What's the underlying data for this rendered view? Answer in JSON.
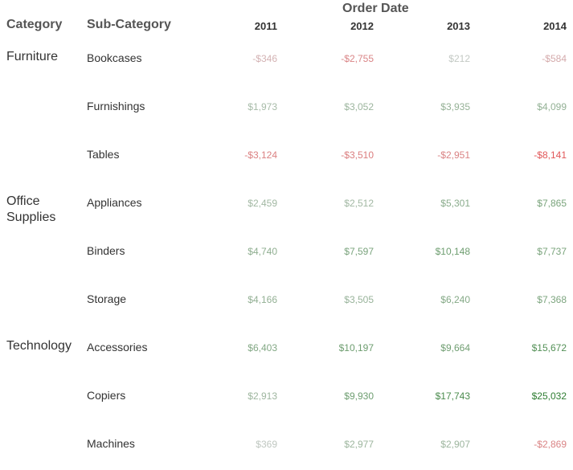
{
  "headers": {
    "category": "Category",
    "sub_category": "Sub-Category",
    "column_group": "Order Date"
  },
  "chart_data": {
    "type": "table",
    "title": "",
    "columns": [
      "2011",
      "2012",
      "2013",
      "2014"
    ],
    "rows": [
      {
        "category": "Furniture",
        "sub_category": "Bookcases",
        "values": [
          -346,
          -2755,
          212,
          -584
        ],
        "labels": [
          "-$346",
          "-$2,755",
          "$212",
          "-$584"
        ]
      },
      {
        "category": "Furniture",
        "sub_category": "Furnishings",
        "values": [
          1973,
          3052,
          3935,
          4099
        ],
        "labels": [
          "$1,973",
          "$3,052",
          "$3,935",
          "$4,099"
        ]
      },
      {
        "category": "Furniture",
        "sub_category": "Tables",
        "values": [
          -3124,
          -3510,
          -2951,
          -8141
        ],
        "labels": [
          "-$3,124",
          "-$3,510",
          "-$2,951",
          "-$8,141"
        ]
      },
      {
        "category": "Office Supplies",
        "sub_category": "Appliances",
        "values": [
          2459,
          2512,
          5301,
          7865
        ],
        "labels": [
          "$2,459",
          "$2,512",
          "$5,301",
          "$7,865"
        ]
      },
      {
        "category": "Office Supplies",
        "sub_category": "Binders",
        "values": [
          4740,
          7597,
          10148,
          7737
        ],
        "labels": [
          "$4,740",
          "$7,597",
          "$10,148",
          "$7,737"
        ]
      },
      {
        "category": "Office Supplies",
        "sub_category": "Storage",
        "values": [
          4166,
          3505,
          6240,
          7368
        ],
        "labels": [
          "$4,166",
          "$3,505",
          "$6,240",
          "$7,368"
        ]
      },
      {
        "category": "Technology",
        "sub_category": "Accessories",
        "values": [
          6403,
          10197,
          9664,
          15672
        ],
        "labels": [
          "$6,403",
          "$10,197",
          "$9,664",
          "$15,672"
        ]
      },
      {
        "category": "Technology",
        "sub_category": "Copiers",
        "values": [
          2913,
          9930,
          17743,
          25032
        ],
        "labels": [
          "$2,913",
          "$9,930",
          "$17,743",
          "$25,032"
        ]
      },
      {
        "category": "Technology",
        "sub_category": "Machines",
        "values": [
          369,
          2977,
          2907,
          -2869
        ],
        "labels": [
          "$369",
          "$2,977",
          "$2,907",
          "-$2,869"
        ]
      }
    ],
    "categories": [
      {
        "name": "Furniture",
        "rows": 3
      },
      {
        "name": "Office\nSupplies",
        "rows": 3
      },
      {
        "name": "Technology",
        "rows": 3
      }
    ],
    "color_scale": {
      "type": "diverging",
      "negative": "#e15759",
      "zero": "#cfcfcf",
      "positive": "#2e7d32"
    }
  }
}
